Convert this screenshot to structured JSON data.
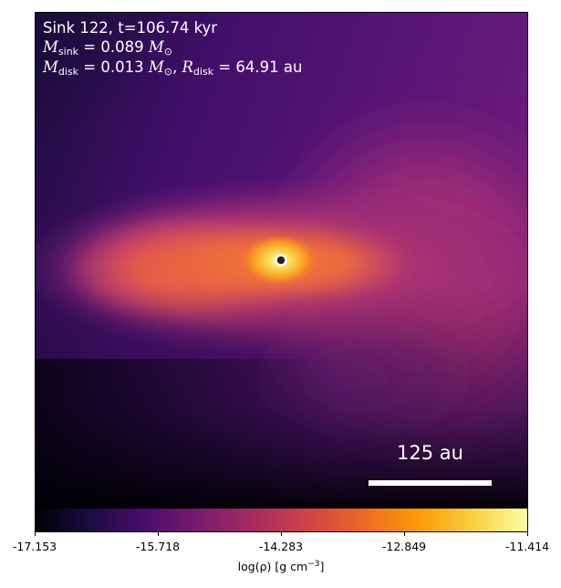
{
  "figure": {
    "sink_name": "Sink 122",
    "time": "t=106.74 kyr",
    "title_text": "Sink 122, t=106.74 kyr",
    "m_sink_value": "= 0.089",
    "m_disk_value": "= 0.013",
    "r_disk_value": "= 64.91 au",
    "mass_unit_symbol": "M",
    "sun_symbol": "⊙",
    "scalebar_label": "125 au",
    "colorbar_label_prefix": "log(ρ) [g cm",
    "colorbar_label_exp": "−3",
    "colorbar_label_suffix": "]"
  },
  "colorbar": {
    "colormap": "inferno",
    "ticks": [
      "-17.153",
      "-15.718",
      "-14.283",
      "-12.849",
      "-11.414"
    ],
    "range": [
      -17.153,
      -11.414
    ]
  },
  "colors": {
    "dark": "#000004",
    "purple": "#3b0f70",
    "magenta": "#8c2981",
    "pink": "#b73779",
    "red": "#de4968",
    "orange": "#f1605d",
    "yellow": "#fcfdbf",
    "sink_marker_edge": "#ffffff",
    "sink_marker_face": "#222222"
  },
  "icons": {
    "sink_marker": "sink-marker-icon"
  }
}
